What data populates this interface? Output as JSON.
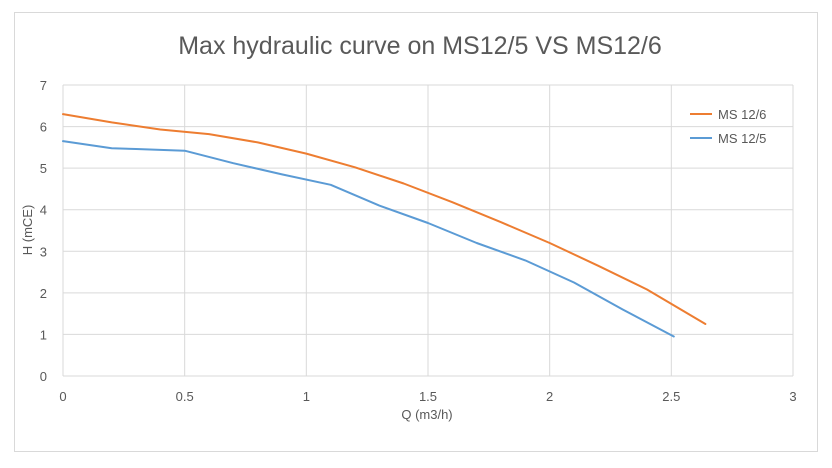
{
  "chart_data": {
    "type": "line",
    "title": "Max hydraulic curve on MS12/5  VS  MS12/6",
    "xlabel": "Q (m3/h)",
    "ylabel": "H (mCE)",
    "xlim": [
      0,
      3
    ],
    "ylim": [
      0,
      7
    ],
    "x_ticks": [
      "0",
      "0.5",
      "1",
      "1.5",
      "2",
      "2.5",
      "3"
    ],
    "y_ticks": [
      "0",
      "1",
      "2",
      "3",
      "4",
      "5",
      "6",
      "7"
    ],
    "grid": true,
    "legend_position": "right",
    "series": [
      {
        "name": "MS 12/6",
        "color": "#ED7D31",
        "points": [
          [
            0,
            6.3
          ],
          [
            0.2,
            6.1
          ],
          [
            0.4,
            5.93
          ],
          [
            0.6,
            5.82
          ],
          [
            0.8,
            5.62
          ],
          [
            1.0,
            5.35
          ],
          [
            1.2,
            5.02
          ],
          [
            1.4,
            4.63
          ],
          [
            1.6,
            4.18
          ],
          [
            1.8,
            3.7
          ],
          [
            2.0,
            3.2
          ],
          [
            2.2,
            2.65
          ],
          [
            2.4,
            2.08
          ],
          [
            2.64,
            1.25
          ]
        ]
      },
      {
        "name": "MS 12/5",
        "color": "#5B9BD5",
        "points": [
          [
            0,
            5.65
          ],
          [
            0.2,
            5.48
          ],
          [
            0.3,
            5.46
          ],
          [
            0.5,
            5.42
          ],
          [
            0.7,
            5.12
          ],
          [
            0.9,
            4.85
          ],
          [
            1.1,
            4.6
          ],
          [
            1.3,
            4.1
          ],
          [
            1.5,
            3.68
          ],
          [
            1.7,
            3.2
          ],
          [
            1.9,
            2.78
          ],
          [
            2.1,
            2.25
          ],
          [
            2.3,
            1.6
          ],
          [
            2.51,
            0.95
          ]
        ]
      }
    ]
  }
}
